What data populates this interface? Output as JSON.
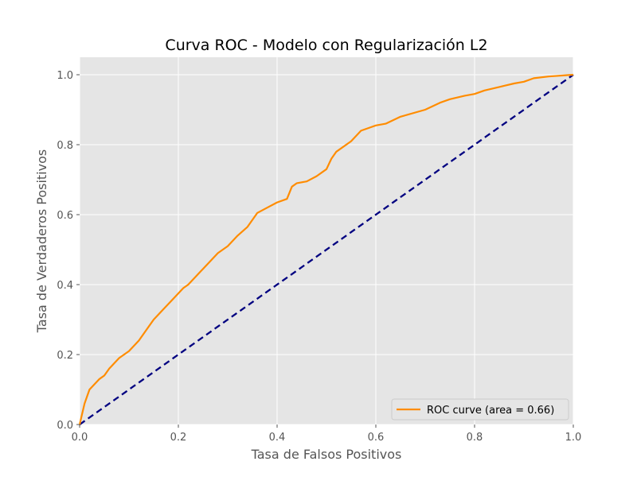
{
  "chart_data": {
    "type": "line",
    "title": "Curva ROC - Modelo con Regularización L2",
    "xlabel": "Tasa de Falsos Positivos",
    "ylabel": "Tasa de Verdaderos Positivos",
    "xlim": [
      0.0,
      1.0
    ],
    "ylim": [
      0.0,
      1.05
    ],
    "xticks": [
      "0.0",
      "0.2",
      "0.4",
      "0.6",
      "0.8",
      "1.0"
    ],
    "yticks": [
      "0.0",
      "0.2",
      "0.4",
      "0.6",
      "0.8",
      "1.0"
    ],
    "grid": true,
    "legend_position": "lower-right",
    "background_color": "#e5e5e5",
    "series": [
      {
        "name": "ROC curve (area = 0.66)",
        "color": "#ff8c00",
        "style": "solid",
        "x": [
          0.0,
          0.005,
          0.01,
          0.015,
          0.02,
          0.03,
          0.04,
          0.05,
          0.06,
          0.07,
          0.08,
          0.09,
          0.1,
          0.12,
          0.14,
          0.15,
          0.17,
          0.19,
          0.21,
          0.22,
          0.24,
          0.26,
          0.28,
          0.3,
          0.32,
          0.34,
          0.36,
          0.38,
          0.4,
          0.42,
          0.43,
          0.44,
          0.46,
          0.48,
          0.5,
          0.51,
          0.52,
          0.55,
          0.57,
          0.59,
          0.6,
          0.62,
          0.65,
          0.7,
          0.73,
          0.75,
          0.78,
          0.8,
          0.82,
          0.85,
          0.88,
          0.9,
          0.92,
          0.95,
          1.0
        ],
        "y": [
          0.0,
          0.03,
          0.06,
          0.08,
          0.1,
          0.115,
          0.13,
          0.14,
          0.16,
          0.175,
          0.19,
          0.2,
          0.21,
          0.24,
          0.28,
          0.3,
          0.33,
          0.36,
          0.39,
          0.4,
          0.43,
          0.46,
          0.49,
          0.51,
          0.54,
          0.565,
          0.605,
          0.62,
          0.635,
          0.645,
          0.68,
          0.69,
          0.695,
          0.71,
          0.73,
          0.76,
          0.78,
          0.81,
          0.84,
          0.85,
          0.855,
          0.86,
          0.88,
          0.9,
          0.92,
          0.93,
          0.94,
          0.945,
          0.955,
          0.965,
          0.975,
          0.98,
          0.99,
          0.995,
          1.0
        ]
      },
      {
        "name": "",
        "color": "#000080",
        "style": "dashed",
        "x": [
          0.0,
          1.0
        ],
        "y": [
          0.0,
          1.0
        ]
      }
    ]
  }
}
